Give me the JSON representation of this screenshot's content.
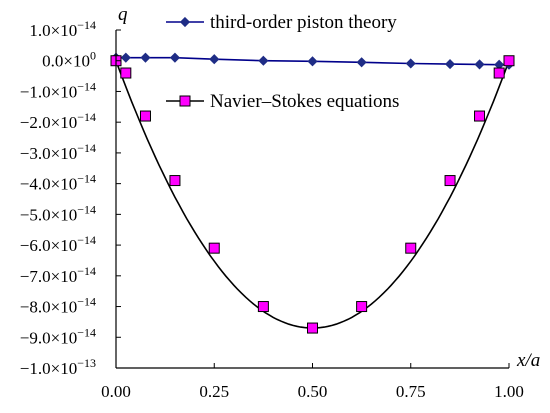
{
  "chart_data": {
    "type": "line",
    "xlabel": "x/a",
    "ylabel": "q",
    "xlim": [
      0,
      1
    ],
    "ylim": [
      -1e-13,
      1e-14
    ],
    "x_ticks": [
      {
        "value": 0.0,
        "label": "0.00"
      },
      {
        "value": 0.25,
        "label": "0.25"
      },
      {
        "value": 0.5,
        "label": "0.50"
      },
      {
        "value": 0.75,
        "label": "0.75"
      },
      {
        "value": 1.0,
        "label": "1.00"
      }
    ],
    "y_ticks": [
      {
        "value": 1e-14,
        "mant": "1.0×10",
        "exp": "−14"
      },
      {
        "value": 0,
        "mant": "0.0×10",
        "exp": "0"
      },
      {
        "value": -1e-14,
        "mant": "−1.0×10",
        "exp": "−14"
      },
      {
        "value": -2e-14,
        "mant": "−2.0×10",
        "exp": "−14"
      },
      {
        "value": -3e-14,
        "mant": "−3.0×10",
        "exp": "−14"
      },
      {
        "value": -4e-14,
        "mant": "−4.0×10",
        "exp": "−14"
      },
      {
        "value": -5e-14,
        "mant": "−5.0×10",
        "exp": "−14"
      },
      {
        "value": -6e-14,
        "mant": "−6.0×10",
        "exp": "−14"
      },
      {
        "value": -7e-14,
        "mant": "−7.0×10",
        "exp": "−14"
      },
      {
        "value": -8e-14,
        "mant": "−8.0×10",
        "exp": "−14"
      },
      {
        "value": -9e-14,
        "mant": "−9.0×10",
        "exp": "−14"
      },
      {
        "value": -1e-13,
        "mant": "−1.0×10",
        "exp": "−13"
      }
    ],
    "series": [
      {
        "name": "third-order piston theory",
        "marker": "diamond",
        "line_color": "#00008b",
        "marker_color": "#1f2d86",
        "x": [
          0.0,
          0.025,
          0.075,
          0.15,
          0.25,
          0.375,
          0.5,
          0.625,
          0.75,
          0.85,
          0.925,
          0.975,
          1.0
        ],
        "y": [
          1e-15,
          1e-15,
          1e-15,
          1e-15,
          5e-16,
          0,
          -2e-16,
          -5e-16,
          -9e-16,
          -1.1e-15,
          -1.2e-15,
          -1.3e-15,
          -1.3e-15
        ]
      },
      {
        "name": "Navier–Stokes equations",
        "marker": "square",
        "line_color": "#000000",
        "marker_color": "#ff00ff",
        "x": [
          0.0,
          0.025,
          0.075,
          0.15,
          0.25,
          0.375,
          0.5,
          0.625,
          0.75,
          0.85,
          0.925,
          0.975,
          1.0
        ],
        "y": [
          0,
          -4e-15,
          -1.8e-14,
          -3.9e-14,
          -6.1e-14,
          -8e-14,
          -8.7e-14,
          -8e-14,
          -6.1e-14,
          -3.9e-14,
          -1.8e-14,
          -4e-15,
          0
        ]
      }
    ],
    "legend_position": "top-right",
    "grid": false
  }
}
